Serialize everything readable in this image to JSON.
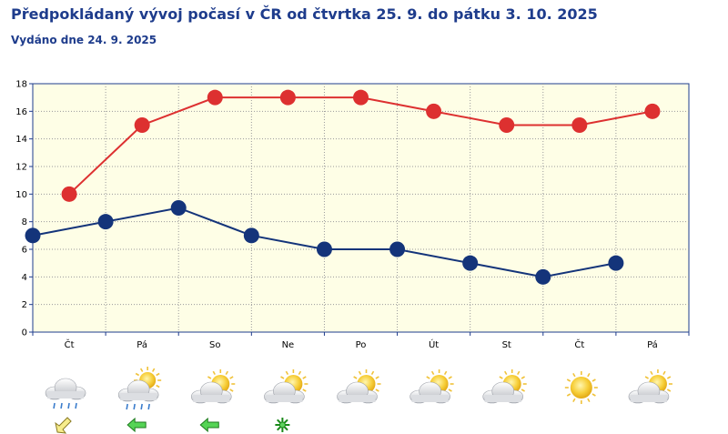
{
  "header": {
    "title": "Předpokládaný vývoj počasí v ČR od čtvrtka 25. 9. do pátku 3. 10. 2025",
    "issued": "Vydáno dne 24. 9. 2025"
  },
  "chart_data": {
    "type": "line",
    "categories": [
      "Čt",
      "Pá",
      "So",
      "Ne",
      "Po",
      "Út",
      "St",
      "Čt",
      "Pá"
    ],
    "ylim": [
      0,
      18
    ],
    "yticks": [
      0,
      2,
      4,
      6,
      8,
      10,
      12,
      14,
      16,
      18
    ],
    "grid": true,
    "series": [
      {
        "color": "#dd3030",
        "x_offset": 0.5,
        "values": [
          10,
          15,
          17,
          17,
          17,
          16,
          15,
          15,
          16
        ]
      },
      {
        "color": "#14347a",
        "x_offset": 0,
        "values": [
          7,
          8,
          9,
          7,
          6,
          6,
          5,
          4,
          5
        ]
      }
    ]
  },
  "weather": {
    "icons": [
      "cloud-rain-icon",
      "sun-cloud-rain-icon",
      "sun-cloud-icon",
      "sun-cloud-icon",
      "sun-cloud-icon",
      "sun-cloud-icon",
      "sun-cloud-icon",
      "sun-icon",
      "sun-cloud-icon"
    ],
    "wind": [
      "wind-ne-arrow-icon",
      "wind-west-arrow-icon",
      "wind-west-arrow-icon",
      "calm-wind-icon",
      "",
      "",
      "",
      "",
      ""
    ]
  }
}
